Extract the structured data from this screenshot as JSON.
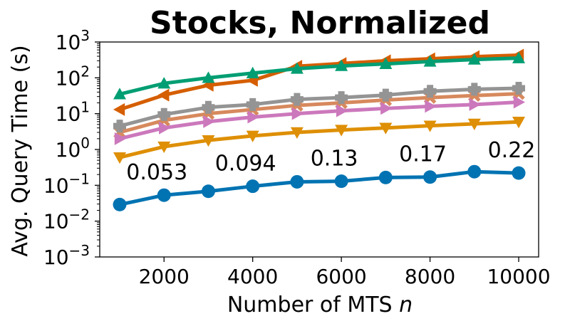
{
  "chart_data": {
    "type": "line",
    "title": "Stocks, Normalized",
    "xlabel": "Number of MTS ",
    "xlabel_var": "n",
    "ylabel": "Avg. Query Time (s)",
    "yscale": "log",
    "xlim": [
      550,
      10450
    ],
    "ylim_exp": [
      -3,
      3
    ],
    "xticks": [
      2000,
      4000,
      6000,
      8000,
      10000
    ],
    "xtick_labels": [
      "2000",
      "4000",
      "6000",
      "8000",
      "10000"
    ],
    "yticks_exp": [
      -3,
      -2,
      -1,
      0,
      1,
      2,
      3
    ],
    "ytick_base": "10",
    "ytick_exponents": [
      "−3",
      "−2",
      "−1",
      "0",
      "1",
      "2",
      "3"
    ],
    "x": [
      1000,
      2000,
      3000,
      4000,
      5000,
      6000,
      7000,
      8000,
      9000,
      10000
    ],
    "series": [
      {
        "name": "s_orange_down",
        "color": "#de8f05",
        "marker": "triangle-down",
        "values": [
          0.6,
          1.2,
          1.8,
          2.4,
          3.0,
          3.5,
          4.0,
          4.6,
          5.2,
          5.9
        ]
      },
      {
        "name": "s_salmon_x",
        "color": "#d7895d",
        "marker": "x",
        "values": [
          3.0,
          6.5,
          10,
          13,
          17,
          20,
          24,
          28,
          32,
          36
        ]
      },
      {
        "name": "s_gray_plus",
        "color": "#949494",
        "marker": "plus",
        "values": [
          4.5,
          9.5,
          15,
          18,
          25,
          28,
          33,
          42,
          48,
          51
        ]
      },
      {
        "name": "s_pink_right",
        "color": "#cc78bc",
        "marker": "triangle-right",
        "values": [
          2.0,
          4.0,
          6.0,
          8.0,
          10,
          12,
          14,
          16,
          18,
          21
        ]
      },
      {
        "name": "s_red_left",
        "color": "#d55e00",
        "marker": "triangle-left",
        "values": [
          13,
          33,
          62,
          85,
          210,
          250,
          300,
          340,
          390,
          430
        ]
      },
      {
        "name": "s_green_up",
        "color": "#029e73",
        "marker": "triangle-up",
        "values": [
          35,
          70,
          100,
          135,
          180,
          215,
          245,
          285,
          325,
          355
        ]
      },
      {
        "name": "s_blue_circle",
        "color": "#0173b2",
        "marker": "circle",
        "values": [
          0.029,
          0.053,
          0.068,
          0.094,
          0.125,
          0.13,
          0.165,
          0.17,
          0.24,
          0.22
        ]
      }
    ],
    "annotations": [
      {
        "text": "0.053",
        "x": 2000,
        "y": 0.053
      },
      {
        "text": "0.094",
        "x": 4000,
        "y": 0.094
      },
      {
        "text": "0.13",
        "x": 6000,
        "y": 0.13
      },
      {
        "text": "0.17",
        "x": 8000,
        "y": 0.17
      },
      {
        "text": "0.22",
        "x": 10000,
        "y": 0.22
      }
    ]
  }
}
